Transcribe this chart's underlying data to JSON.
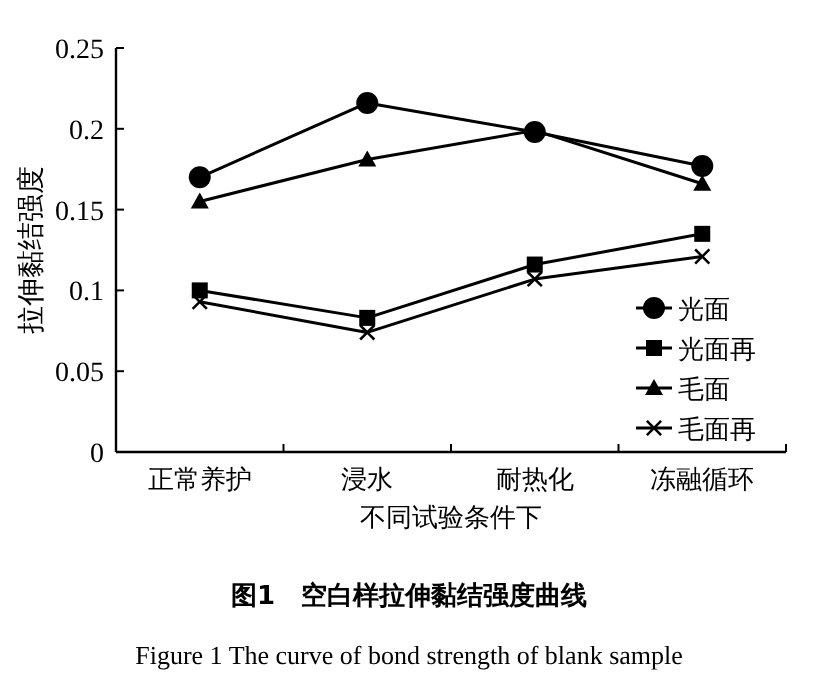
{
  "chart_data": {
    "type": "line",
    "title": "图1　空白样拉伸黏结强度曲线",
    "subtitle": "Figure 1 The curve of bond strength of blank sample",
    "xlabel": "不同试验条件下",
    "ylabel": "拉伸黏结强度",
    "categories": [
      "正常养护",
      "浸水",
      "耐热化",
      "冻融循环"
    ],
    "ylim": [
      0,
      0.25
    ],
    "yticks": [
      0,
      0.05,
      0.1,
      0.15,
      0.2,
      0.25
    ],
    "grid": false,
    "legend": "bottom right",
    "line_style": "solid",
    "series": [
      {
        "name": "光面",
        "color": "#000000",
        "marker": "circle",
        "values": [
          0.17,
          0.216,
          0.198,
          0.177
        ]
      },
      {
        "name": "光面再",
        "color": "#000000",
        "marker": "square",
        "values": [
          0.1,
          0.083,
          0.116,
          0.135
        ]
      },
      {
        "name": "毛面",
        "color": "#000000",
        "marker": "triangle",
        "values": [
          0.155,
          0.181,
          0.199,
          0.166
        ]
      },
      {
        "name": "毛面再",
        "color": "#000000",
        "marker": "cross",
        "values": [
          0.093,
          0.074,
          0.107,
          0.121
        ]
      }
    ]
  }
}
